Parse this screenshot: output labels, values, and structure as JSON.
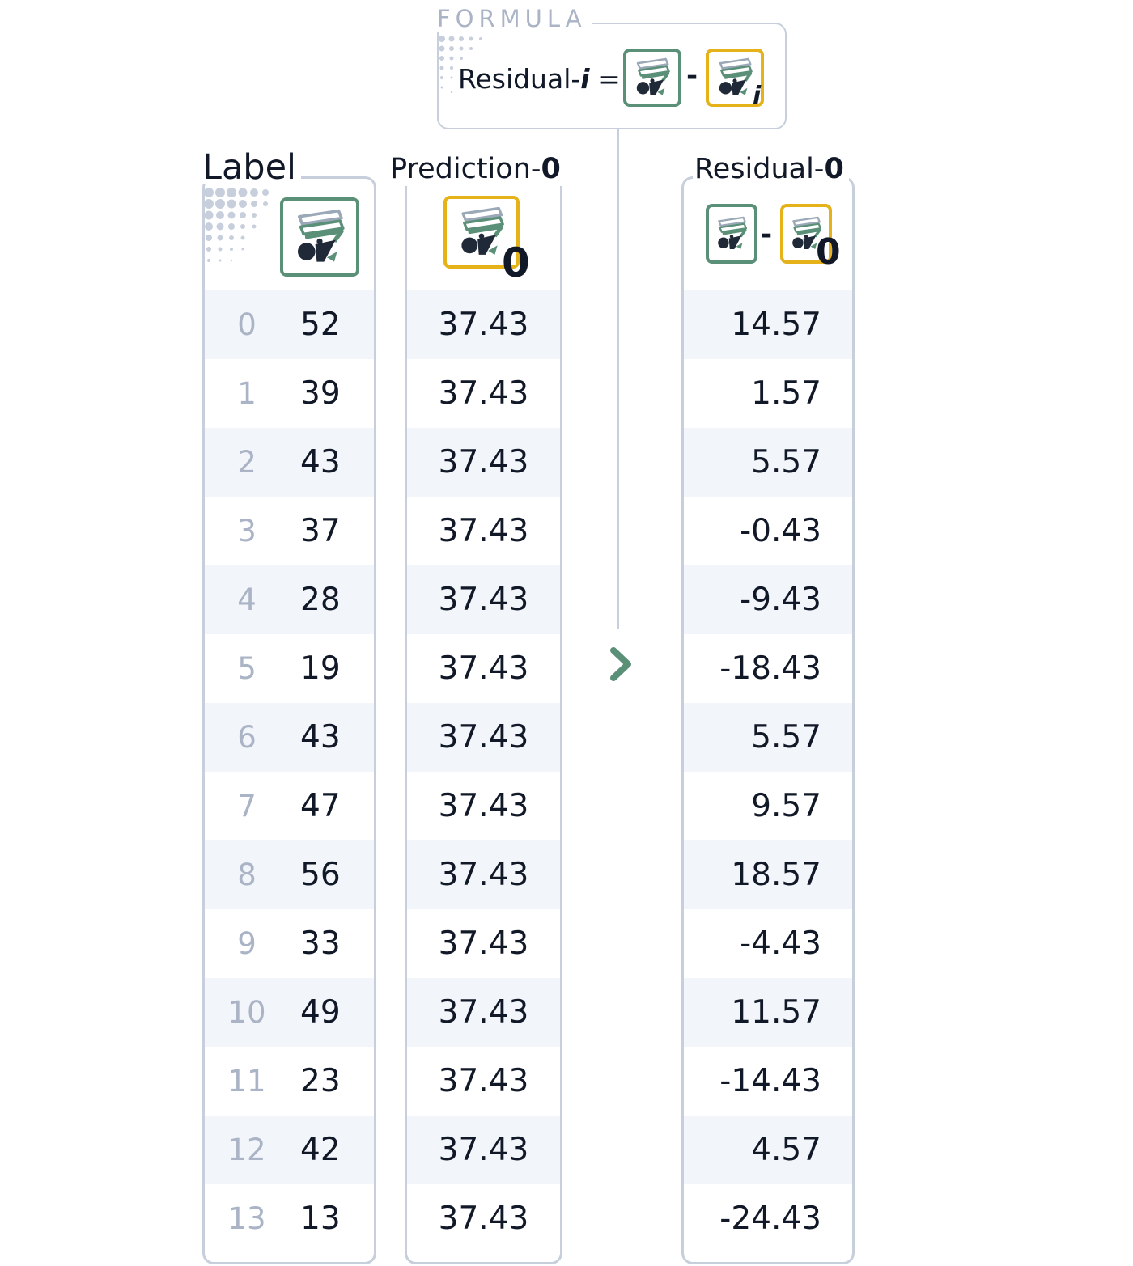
{
  "formula": {
    "title": "FORMULA",
    "lhs_text": "Residual-",
    "lhs_index": "i",
    "equals": "=",
    "minus": "-",
    "pred_sub": "i"
  },
  "columns": {
    "label": {
      "title": "Label"
    },
    "prediction": {
      "title_text": "Prediction-",
      "title_index": "0",
      "icon_sub": "0"
    },
    "residual": {
      "title_text": "Residual-",
      "title_index": "0",
      "minus": "-",
      "icon_sub": "0"
    }
  },
  "rows": [
    {
      "index": "0",
      "label": "52",
      "prediction": "37.43",
      "residual": "14.57"
    },
    {
      "index": "1",
      "label": "39",
      "prediction": "37.43",
      "residual": "1.57"
    },
    {
      "index": "2",
      "label": "43",
      "prediction": "37.43",
      "residual": "5.57"
    },
    {
      "index": "3",
      "label": "37",
      "prediction": "37.43",
      "residual": "-0.43"
    },
    {
      "index": "4",
      "label": "28",
      "prediction": "37.43",
      "residual": "-9.43"
    },
    {
      "index": "5",
      "label": "19",
      "prediction": "37.43",
      "residual": "-18.43"
    },
    {
      "index": "6",
      "label": "43",
      "prediction": "37.43",
      "residual": "5.57"
    },
    {
      "index": "7",
      "label": "47",
      "prediction": "37.43",
      "residual": "9.57"
    },
    {
      "index": "8",
      "label": "56",
      "prediction": "37.43",
      "residual": "18.57"
    },
    {
      "index": "9",
      "label": "33",
      "prediction": "37.43",
      "residual": "-4.43"
    },
    {
      "index": "10",
      "label": "49",
      "prediction": "37.43",
      "residual": "11.57"
    },
    {
      "index": "11",
      "label": "23",
      "prediction": "37.43",
      "residual": "-14.43"
    },
    {
      "index": "12",
      "label": "42",
      "prediction": "37.43",
      "residual": "4.57"
    },
    {
      "index": "13",
      "label": "13",
      "prediction": "37.43",
      "residual": "-24.43"
    }
  ],
  "icons": {
    "label_tile": "model-stack-icon",
    "prediction_tile": "model-stack-icon",
    "arrow": "chevron-right-icon"
  },
  "colors": {
    "label_accent": "#5a8f78",
    "prediction_accent": "#e6b219",
    "border": "#c7cfdc",
    "index_text": "#aab4c6",
    "row_shade": "#f2f5f9"
  }
}
